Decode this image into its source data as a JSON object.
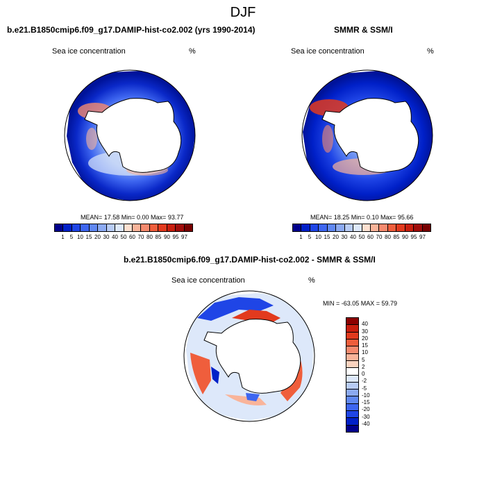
{
  "title": "DJF",
  "panels": [
    {
      "title": "b.e21.B1850cmip6.f09_g17.DAMIP-hist-co2.002 (yrs 1990-2014)",
      "left_label": "Sea ice concentration",
      "right_label": "%",
      "stats": "MEAN=  17.58  Min=   0.00  Max=  93.77"
    },
    {
      "title": "SMMR & SSM/I",
      "left_label": "Sea ice concentration",
      "right_label": "%",
      "stats": "MEAN=  18.25  Min=   0.10  Max=  95.66"
    }
  ],
  "abs_colorbar": {
    "labels": [
      "1",
      "5",
      "10",
      "15",
      "20",
      "30",
      "40",
      "50",
      "60",
      "70",
      "80",
      "85",
      "90",
      "95",
      "97"
    ],
    "colors": [
      "#00008c",
      "#0020c8",
      "#1f45e6",
      "#3e66f0",
      "#6088f2",
      "#8caaf2",
      "#b8ccf5",
      "#dde8fa",
      "#fde0d0",
      "#f9b49a",
      "#f58a6e",
      "#ef5e3c",
      "#e23a1e",
      "#c81e0e",
      "#a00c0a",
      "#780000"
    ]
  },
  "diff_panel": {
    "title": "b.e21.B1850cmip6.f09_g17.DAMIP-hist-co2.002 - SMMR & SSM/I",
    "left_label": "Sea ice concentration",
    "right_label": "%",
    "stats": "MIN = -63.05 MAX =  59.79"
  },
  "diff_colorbar": {
    "labels": [
      "40",
      "30",
      "20",
      "15",
      "10",
      "5",
      "2",
      "0",
      "-2",
      "-5",
      "-10",
      "-15",
      "-20",
      "-30",
      "-40"
    ],
    "colors": [
      "#8c0000",
      "#c81e0e",
      "#e23a1e",
      "#ef5e3c",
      "#f58a6e",
      "#f9b49a",
      "#fcd4c0",
      "#ffffff",
      "#dde8fa",
      "#b8ccf5",
      "#8caaf2",
      "#6088f2",
      "#3e66f0",
      "#1f45e6",
      "#0020c8",
      "#00008c"
    ]
  }
}
